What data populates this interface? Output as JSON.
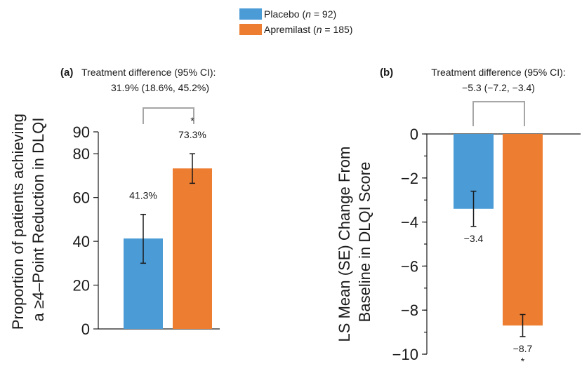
{
  "legend": [
    {
      "prefix": "Placebo (",
      "n_label": "n",
      "suffix": " = 92)",
      "color": "#4a9bd6"
    },
    {
      "prefix": "Apremilast (",
      "n_label": "n",
      "suffix": " = 185)",
      "color": "#ed7d31"
    }
  ],
  "chart_data": [
    {
      "type": "bar",
      "panel": "(a)",
      "treatment_difference": {
        "line1": "Treatment difference (95% CI):",
        "line2": "31.9% (18.6%, 45.2%)"
      },
      "ylabel": [
        "Proportion of patients achieving",
        "a ≥4–Point Reduction in DLQI"
      ],
      "ylim": [
        0,
        90
      ],
      "ytick_values": [
        0,
        20,
        40,
        60,
        80,
        90
      ],
      "ytick_labels": [
        "0",
        "20",
        "40",
        "60",
        "80",
        "90"
      ],
      "categories": [
        "Placebo",
        "Apremilast"
      ],
      "values": [
        41.3,
        73.3
      ],
      "error_low": [
        30,
        66.5
      ],
      "error_high": [
        52.3,
        80
      ],
      "data_labels": [
        "41.3%",
        "73.3%"
      ],
      "significance": [
        "",
        "*"
      ]
    },
    {
      "type": "bar",
      "panel": "(b)",
      "treatment_difference": {
        "line1": "Treatment difference (95% CI):",
        "line2": "−5.3 (−7.2, −3.4)"
      },
      "ylabel": [
        "LS Mean (SE) Change From",
        "Baseline in DLQI Score"
      ],
      "ylim": [
        -10,
        0
      ],
      "ytick_values": [
        0,
        -2,
        -4,
        -6,
        -8,
        -10
      ],
      "ytick_labels": [
        "0",
        "−2",
        "−4",
        "−6",
        "−8",
        "−10"
      ],
      "categories": [
        "Placebo",
        "Apremilast"
      ],
      "values": [
        -3.4,
        -8.7
      ],
      "error_low": [
        -4.2,
        -9.2
      ],
      "error_high": [
        -2.6,
        -8.2
      ],
      "data_labels": [
        "−3.4",
        "−8.7"
      ],
      "significance": [
        "",
        "*"
      ]
    }
  ]
}
